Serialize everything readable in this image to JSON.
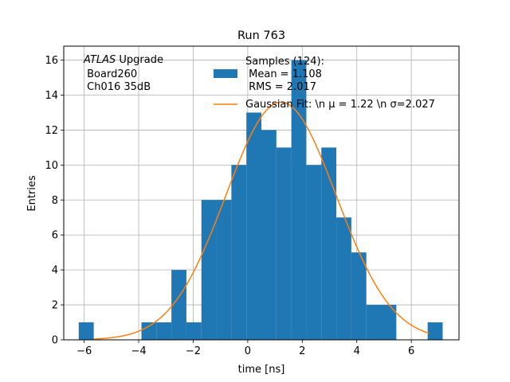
{
  "chart_data": {
    "type": "bar",
    "title": "Run 763",
    "xlabel": "time [ns]",
    "ylabel": "Entries",
    "xlim": [
      -6.75,
      7.75
    ],
    "ylim": [
      0,
      16.8
    ],
    "xticks": [
      -6,
      -4,
      -2,
      0,
      2,
      4,
      6
    ],
    "xtick_labels": [
      "−6",
      "−4",
      "−2",
      "0",
      "2",
      "4",
      "6"
    ],
    "yticks": [
      0,
      2,
      4,
      6,
      8,
      10,
      12,
      14,
      16
    ],
    "ytick_labels": [
      "0",
      "2",
      "4",
      "6",
      "8",
      "10",
      "12",
      "14",
      "16"
    ],
    "grid": true,
    "bar_color": "#1f77b4",
    "fit_color": "#ff7f0e",
    "bins": [
      {
        "x0": -6.2,
        "x1": -5.65,
        "count": 1
      },
      {
        "x0": -3.9,
        "x1": -3.35,
        "count": 1
      },
      {
        "x0": -3.35,
        "x1": -2.8,
        "count": 1
      },
      {
        "x0": -2.8,
        "x1": -2.25,
        "count": 4
      },
      {
        "x0": -2.25,
        "x1": -1.7,
        "count": 1
      },
      {
        "x0": -1.7,
        "x1": -1.15,
        "count": 8
      },
      {
        "x0": -1.15,
        "x1": -0.6,
        "count": 8
      },
      {
        "x0": -0.6,
        "x1": -0.05,
        "count": 10
      },
      {
        "x0": -0.05,
        "x1": 0.5,
        "count": 13
      },
      {
        "x0": 0.5,
        "x1": 1.05,
        "count": 12
      },
      {
        "x0": 1.05,
        "x1": 1.6,
        "count": 11
      },
      {
        "x0": 1.6,
        "x1": 2.15,
        "count": 16
      },
      {
        "x0": 2.15,
        "x1": 2.7,
        "count": 10
      },
      {
        "x0": 2.7,
        "x1": 3.25,
        "count": 11
      },
      {
        "x0": 3.25,
        "x1": 3.8,
        "count": 7
      },
      {
        "x0": 3.8,
        "x1": 4.35,
        "count": 5
      },
      {
        "x0": 4.35,
        "x1": 4.9,
        "count": 2
      },
      {
        "x0": 4.9,
        "x1": 5.45,
        "count": 2
      },
      {
        "x0": 6.6,
        "x1": 7.15,
        "count": 1
      }
    ],
    "fit": {
      "mu": 1.22,
      "sigma": 2.027,
      "amplitude": 13.6,
      "x_range": [
        -5.65,
        6.65
      ]
    },
    "annotation": {
      "prefix_italic": "ATLAS",
      "prefix_rest": " Upgrade",
      "line2": " Board260",
      "line3": " Ch016 35dB"
    },
    "legend": {
      "placement": "upper center",
      "hist_lines": [
        "Samples (124):",
        " Mean = 1.108",
        " RMS = 2.017"
      ],
      "fit_label": "Gaussian Fit: \\n μ = 1.22 \\n σ=2.027"
    }
  }
}
